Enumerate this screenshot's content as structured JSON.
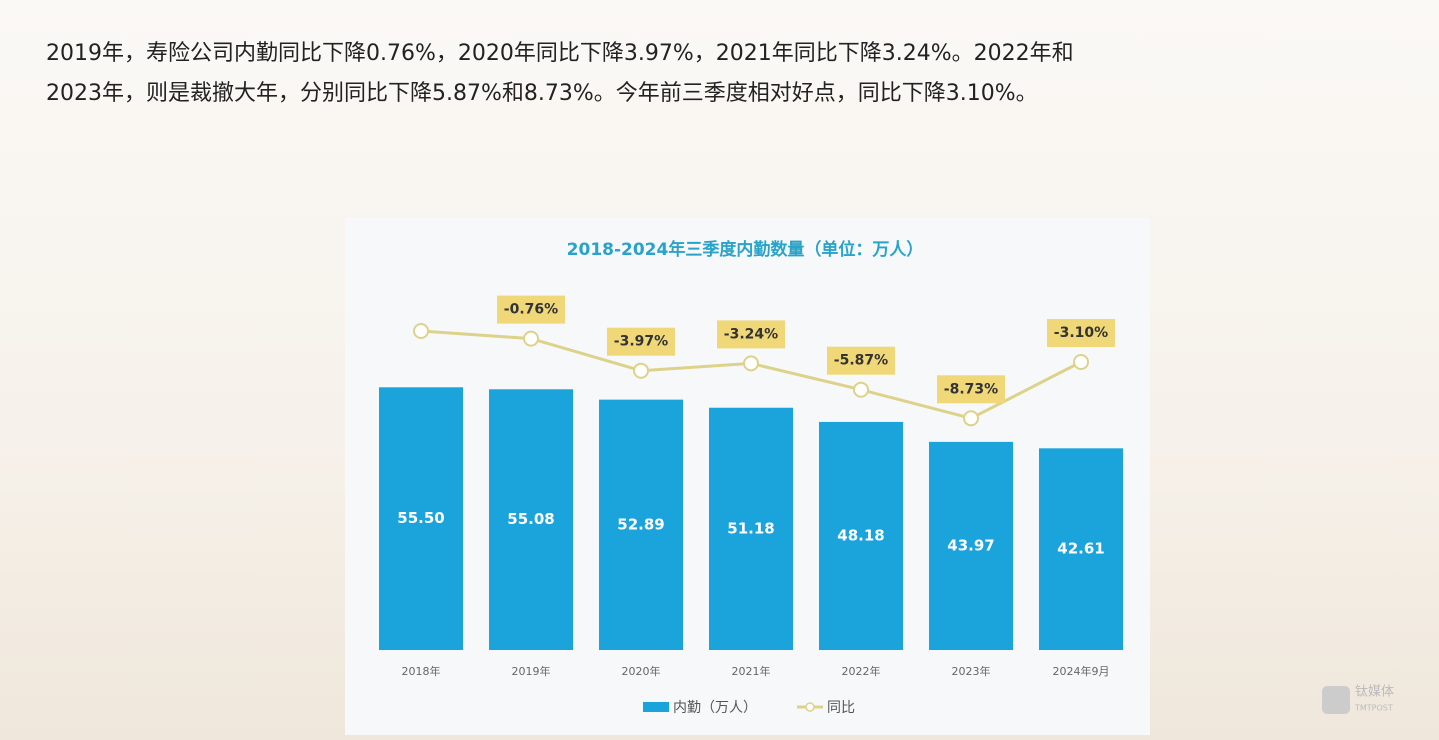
{
  "paragraph_lines": [
    "2019年，寿险公司内勤同比下降0.76%，2020年同比下降3.97%，2021年同比下降3.24%。2022年和",
    "2023年，则是裁撤大年，分别同比下降5.87%和8.73%。今年前三季度相对好点，同比下降3.10%。"
  ],
  "chart_data": {
    "type": "bar-line",
    "title": "2018-2024年三季度内勤数量（单位：万人）",
    "categories": [
      "2018年",
      "2019年",
      "2020年",
      "2021年",
      "2022年",
      "2023年",
      "2024年9月"
    ],
    "series": [
      {
        "name": "内勤（万人）",
        "type": "bar",
        "color": "#1ba3dc",
        "values": [
          55.5,
          55.08,
          52.89,
          51.18,
          48.18,
          43.97,
          42.61
        ],
        "value_labels": [
          "55.50",
          "55.08",
          "52.89",
          "51.18",
          "48.18",
          "43.97",
          "42.61"
        ]
      },
      {
        "name": "同比",
        "type": "line",
        "axis": "y2",
        "color": "#ddd28a",
        "values": [
          0,
          -0.76,
          -3.97,
          -3.24,
          -5.87,
          -8.73,
          -3.1
        ],
        "value_labels": [
          null,
          "-0.76%",
          "-3.97%",
          "-3.24%",
          "-5.87%",
          "-8.73%",
          "-3.10%"
        ]
      }
    ],
    "ylim": [
      0,
      60
    ],
    "y2lim": [
      -10,
      2
    ],
    "grid": false,
    "legend": "bottom"
  },
  "watermark": {
    "name": "钛媒体",
    "sub": "TMTPOST"
  }
}
